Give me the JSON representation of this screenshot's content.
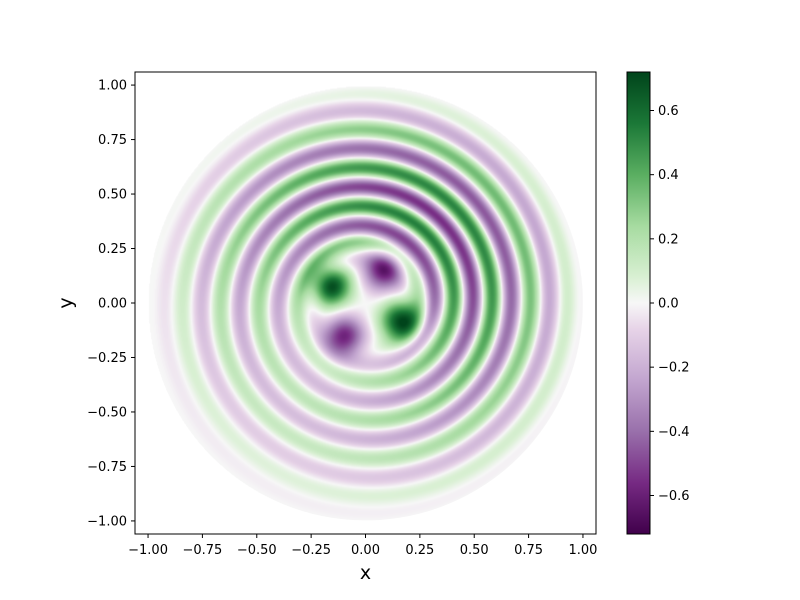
{
  "chart_data": {
    "type": "heatmap",
    "title": "",
    "xlabel": "x",
    "ylabel": "y",
    "xlim": [
      -1.06,
      1.06
    ],
    "ylim": [
      -1.06,
      1.06
    ],
    "x_ticks": [
      "−1.00",
      "−0.75",
      "−0.50",
      "−0.25",
      "0.00",
      "0.25",
      "0.50",
      "0.75",
      "1.00"
    ],
    "x_tick_values": [
      -1.0,
      -0.75,
      -0.5,
      -0.25,
      0.0,
      0.25,
      0.5,
      0.75,
      1.0
    ],
    "y_ticks": [
      "−1.00",
      "−0.75",
      "−0.50",
      "−0.25",
      "0.00",
      "0.25",
      "0.50",
      "0.75",
      "1.00"
    ],
    "y_tick_values": [
      -1.0,
      -0.75,
      -0.5,
      -0.25,
      0.0,
      0.25,
      0.5,
      0.75,
      1.0
    ],
    "domain": "unit disk, radius 1.0",
    "grid": false,
    "colormap": "PRGn",
    "value_range": [
      -0.72,
      0.72
    ],
    "colorbar": {
      "ticks": [
        "−0.6",
        "−0.4",
        "−0.2",
        "0.0",
        "0.2",
        "0.4",
        "0.6"
      ],
      "tick_values": [
        -0.6,
        -0.4,
        -0.2,
        0.0,
        0.2,
        0.4,
        0.6
      ],
      "placement": "right"
    },
    "colormap_stops": [
      [
        "#40004b",
        -0.72
      ],
      [
        "#762a83",
        -0.56
      ],
      [
        "#9970ab",
        -0.4
      ],
      [
        "#c2a5cf",
        -0.24
      ],
      [
        "#e7d4e8",
        -0.08
      ],
      [
        "#f7f7f7",
        0.0
      ],
      [
        "#d9f0d3",
        0.08
      ],
      [
        "#a6dba0",
        0.24
      ],
      [
        "#5aae61",
        0.4
      ],
      [
        "#1b7837",
        0.56
      ],
      [
        "#00441b",
        0.72
      ]
    ],
    "features": [
      {
        "name": "central green lobe",
        "x": -0.16,
        "y": 0.08,
        "value": 0.7
      },
      {
        "name": "central green lobe",
        "x": 0.16,
        "y": -0.08,
        "value": 0.7
      },
      {
        "name": "central purple lobe",
        "x": 0.08,
        "y": 0.15,
        "value": -0.6
      },
      {
        "name": "central purple lobe",
        "x": -0.1,
        "y": -0.15,
        "value": -0.6
      },
      {
        "name": "spiral ring",
        "radius": 0.45,
        "value": -0.4
      },
      {
        "name": "spiral ring",
        "radius": 0.62,
        "value": 0.45
      },
      {
        "name": "spiral ring",
        "radius": 0.78,
        "value": -0.35
      },
      {
        "name": "spiral ring",
        "radius": 0.92,
        "value": 0.2
      }
    ]
  }
}
